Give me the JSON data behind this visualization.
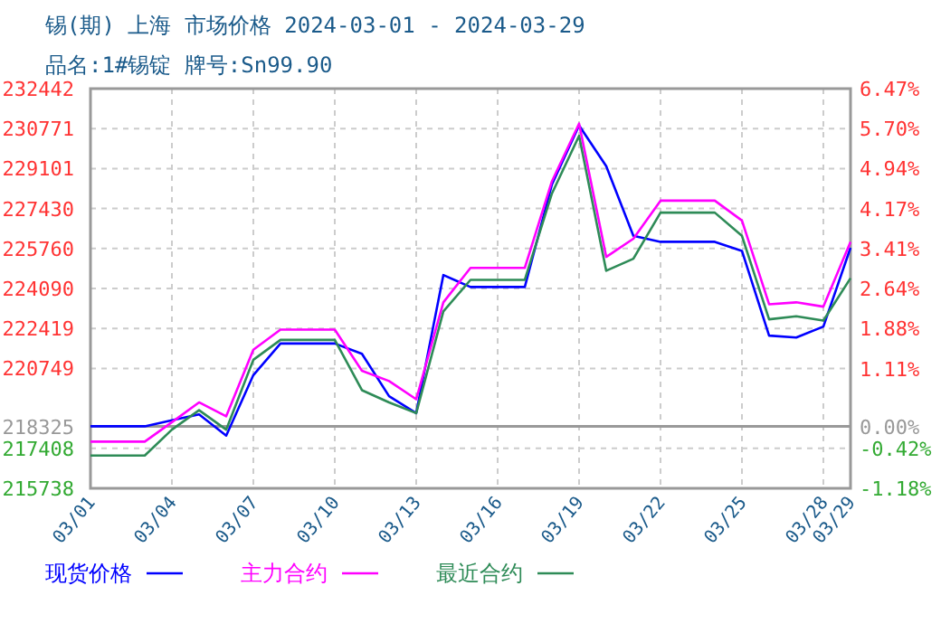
{
  "chart_data": {
    "type": "line",
    "title": "锡(期) 上海 市场价格 2024-03-01 - 2024-03-29",
    "subtitle": "品名:1#锡锭 牌号:Sn99.90",
    "x": [
      "2024-03-01",
      "2024-03-02",
      "2024-03-03",
      "2024-03-04",
      "2024-03-05",
      "2024-03-06",
      "2024-03-07",
      "2024-03-08",
      "2024-03-09",
      "2024-03-10",
      "2024-03-11",
      "2024-03-12",
      "2024-03-13",
      "2024-03-14",
      "2024-03-15",
      "2024-03-16",
      "2024-03-17",
      "2024-03-18",
      "2024-03-19",
      "2024-03-20",
      "2024-03-21",
      "2024-03-22",
      "2024-03-23",
      "2024-03-24",
      "2024-03-25",
      "2024-03-26",
      "2024-03-27",
      "2024-03-28",
      "2024-03-29"
    ],
    "series": [
      {
        "name": "现货价格",
        "color": "#0000ff",
        "values": [
          218330,
          218330,
          218330,
          218580,
          218830,
          217940,
          220470,
          221790,
          221790,
          221790,
          221360,
          219590,
          218880,
          224650,
          224150,
          224150,
          224150,
          228440,
          230900,
          229200,
          226290,
          226040,
          226040,
          226040,
          225660,
          222120,
          222040,
          222500,
          225790
        ]
      },
      {
        "name": "主力合约",
        "color": "#ff00ff",
        "values": [
          217690,
          217690,
          217690,
          218500,
          219330,
          218750,
          221530,
          222370,
          222370,
          222370,
          220650,
          220220,
          219460,
          223510,
          224950,
          224950,
          224950,
          228570,
          230980,
          225410,
          226170,
          227760,
          227760,
          227760,
          226930,
          223430,
          223510,
          223330,
          226040
        ]
      },
      {
        "name": "最近合约",
        "color": "#2e8b57",
        "values": [
          217110,
          217110,
          217110,
          218190,
          219000,
          218190,
          221110,
          221940,
          221940,
          221940,
          219840,
          219330,
          218880,
          223130,
          224450,
          224450,
          224450,
          228060,
          230470,
          224830,
          225330,
          227260,
          227260,
          227260,
          226290,
          222800,
          222930,
          222750,
          224520
        ]
      }
    ],
    "xlim": [
      "2024-03-01",
      "2024-03-29"
    ],
    "xticks": [
      {
        "value": "2024-03-01",
        "label": "03/01"
      },
      {
        "value": "2024-03-04",
        "label": "03/04"
      },
      {
        "value": "2024-03-07",
        "label": "03/07"
      },
      {
        "value": "2024-03-10",
        "label": "03/10"
      },
      {
        "value": "2024-03-13",
        "label": "03/13"
      },
      {
        "value": "2024-03-16",
        "label": "03/16"
      },
      {
        "value": "2024-03-19",
        "label": "03/19"
      },
      {
        "value": "2024-03-22",
        "label": "03/22"
      },
      {
        "value": "2024-03-25",
        "label": "03/25"
      },
      {
        "value": "2024-03-28",
        "label": "03/28"
      },
      {
        "value": "2024-03-29",
        "label": "03/29"
      }
    ],
    "ylim": [
      215738,
      232442
    ],
    "yticks": [
      215738,
      217408,
      218325,
      220749,
      222419,
      224090,
      225760,
      227430,
      229101,
      230771,
      232442
    ],
    "y2lim": [
      -1.18,
      6.47
    ],
    "y2ticks": [
      {
        "value": -1.18,
        "label": "-1.18%"
      },
      {
        "value": -0.42,
        "label": "-0.42%"
      },
      {
        "value": 0,
        "label": "0.00%"
      },
      {
        "value": 1.11,
        "label": "1.11%"
      },
      {
        "value": 1.88,
        "label": "1.88%"
      },
      {
        "value": 2.64,
        "label": "2.64%"
      },
      {
        "value": 3.41,
        "label": "3.41%"
      },
      {
        "value": 4.17,
        "label": "4.17%"
      },
      {
        "value": 4.94,
        "label": "4.94%"
      },
      {
        "value": 5.7,
        "label": "5.70%"
      },
      {
        "value": 6.47,
        "label": "6.47%"
      }
    ],
    "ref_lines": [
      {
        "axis": "y",
        "value": 218325,
        "color": "#999999"
      }
    ],
    "grid": true,
    "legend": "bottom",
    "line_style": "solid",
    "marker": "none"
  }
}
